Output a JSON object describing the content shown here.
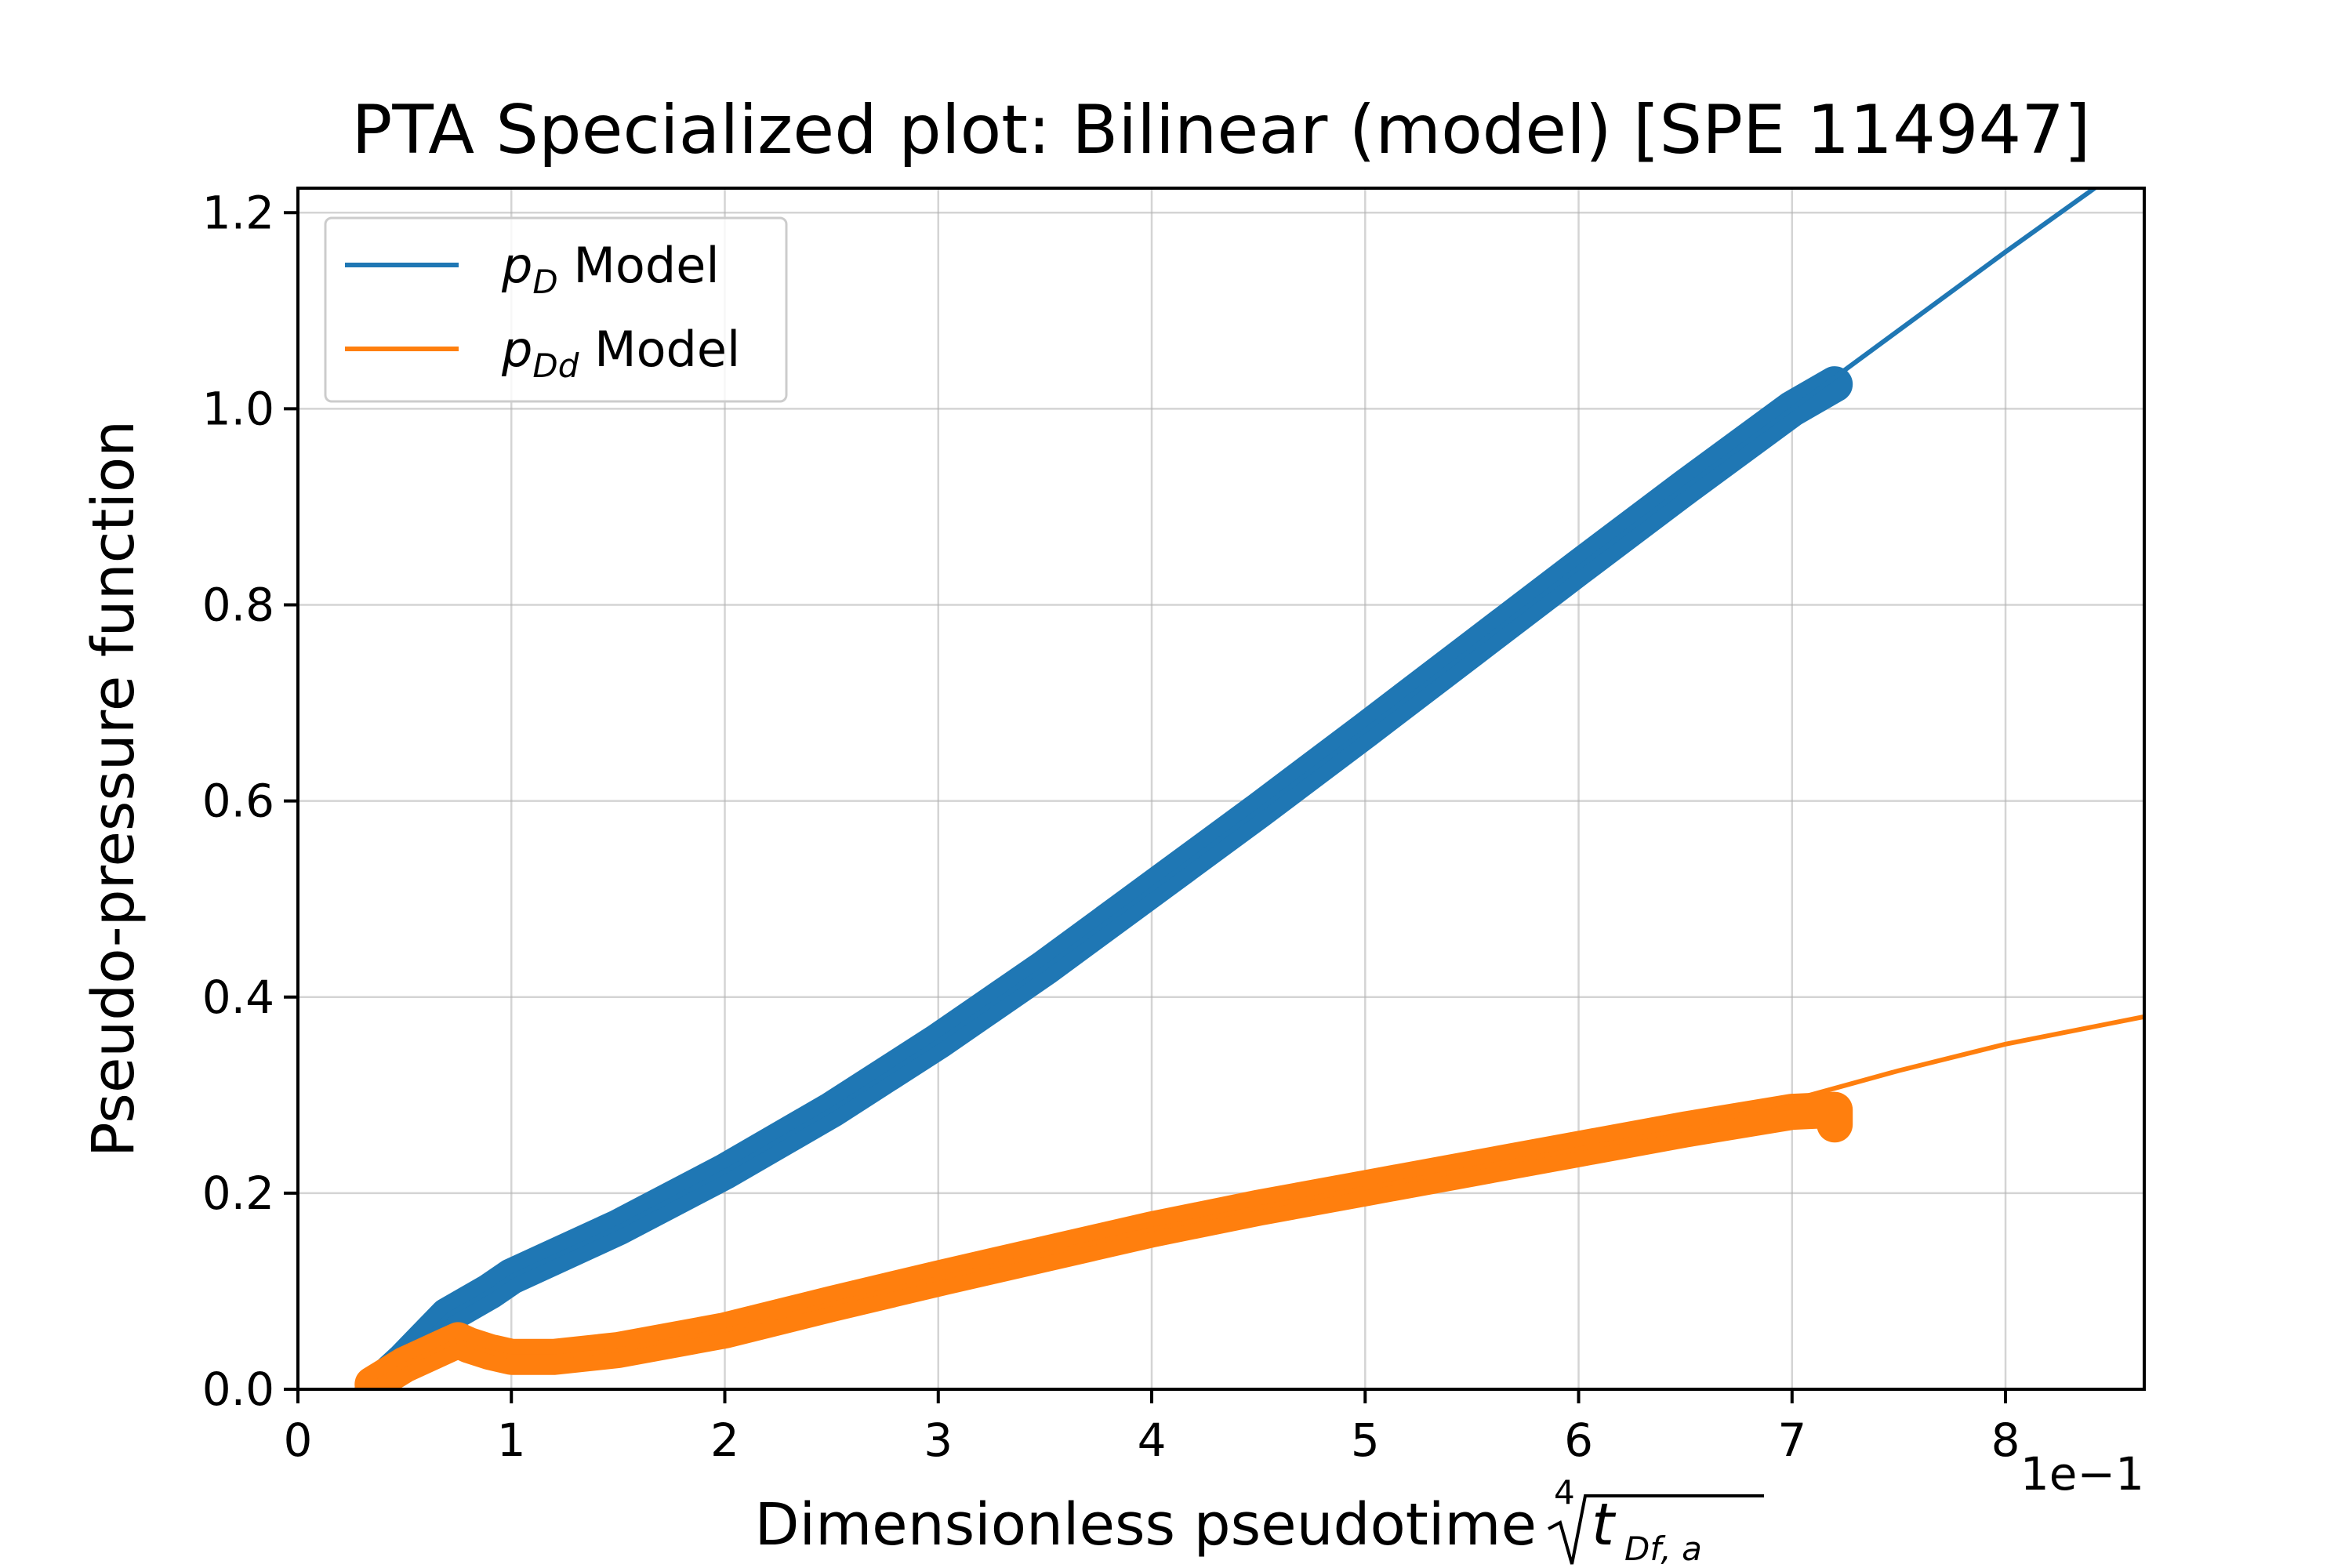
{
  "chart_data": {
    "type": "line",
    "title": "PTA Specialized plot: Bilinear (model) [SPE 114947]",
    "xlabel": "Dimensionless pseudotime",
    "xlabel_math": {
      "root_index": "4",
      "base": "t",
      "subscript": "Df, a"
    },
    "ylabel": "Pseudo-pressure function",
    "x_offset_label": "1e−1",
    "xlim": [
      0,
      8.65
    ],
    "ylim": [
      0,
      1.225
    ],
    "xticks": [
      0,
      1,
      2,
      3,
      4,
      5,
      6,
      7,
      8
    ],
    "yticks": [
      0.0,
      0.2,
      0.4,
      0.6,
      0.8,
      1.0,
      1.2
    ],
    "xtick_labels": [
      "0",
      "1",
      "2",
      "3",
      "4",
      "5",
      "6",
      "7",
      "8"
    ],
    "ytick_labels": [
      "0.0",
      "0.2",
      "0.4",
      "0.6",
      "0.8",
      "1.0",
      "1.2"
    ],
    "grid": true,
    "legend_position": "top-left",
    "series": [
      {
        "name": "p_D Model",
        "legend_symbol": "p",
        "legend_sub": "D",
        "legend_rest": " Model",
        "color": "#1f77b4",
        "line_x": [
          0.35,
          0.5,
          0.7,
          0.9,
          1.0,
          1.2,
          1.5,
          2.0,
          2.5,
          3.0,
          3.5,
          4.0,
          4.5,
          5.0,
          5.5,
          6.0,
          6.5,
          7.0,
          7.25,
          7.5,
          8.0,
          8.45
        ],
        "line_y": [
          0.0,
          0.03,
          0.075,
          0.1,
          0.115,
          0.135,
          0.165,
          0.222,
          0.285,
          0.355,
          0.43,
          0.51,
          0.59,
          0.672,
          0.755,
          0.838,
          0.92,
          1.0,
          1.04,
          1.08,
          1.16,
          1.23
        ],
        "marker_x": [
          0.35,
          0.5,
          0.7,
          0.9,
          1.0,
          1.2,
          1.5,
          2.0,
          2.5,
          3.0,
          3.5,
          4.0,
          4.5,
          5.0,
          5.5,
          6.0,
          6.5,
          7.0,
          7.2
        ],
        "marker_y": [
          0.0,
          0.03,
          0.075,
          0.1,
          0.115,
          0.135,
          0.165,
          0.222,
          0.285,
          0.355,
          0.43,
          0.51,
          0.59,
          0.672,
          0.755,
          0.838,
          0.92,
          1.0,
          1.025
        ]
      },
      {
        "name": "p_Dd Model",
        "legend_symbol": "p",
        "legend_sub": "Dd",
        "legend_rest": " Model",
        "color": "#ff7f0e",
        "line_x": [
          0.35,
          0.5,
          0.6,
          0.7,
          0.75,
          0.8,
          0.9,
          1.0,
          1.2,
          1.5,
          2.0,
          2.5,
          3.0,
          3.5,
          4.0,
          4.5,
          5.0,
          5.5,
          6.0,
          6.5,
          7.0,
          7.5,
          8.0,
          8.65
        ],
        "line_y": [
          0.005,
          0.025,
          0.035,
          0.045,
          0.05,
          0.045,
          0.038,
          0.033,
          0.033,
          0.04,
          0.06,
          0.087,
          0.113,
          0.138,
          0.163,
          0.185,
          0.205,
          0.225,
          0.245,
          0.265,
          0.295,
          0.325,
          0.352,
          0.38
        ],
        "marker_x": [
          0.35,
          0.5,
          0.6,
          0.7,
          0.75,
          0.8,
          0.9,
          1.0,
          1.2,
          1.5,
          2.0,
          2.5,
          3.0,
          3.5,
          4.0,
          4.5,
          5.0,
          5.5,
          6.0,
          6.5,
          7.0,
          7.2,
          7.2
        ],
        "marker_y": [
          0.005,
          0.025,
          0.035,
          0.045,
          0.05,
          0.045,
          0.038,
          0.033,
          0.033,
          0.04,
          0.06,
          0.087,
          0.113,
          0.138,
          0.163,
          0.185,
          0.205,
          0.225,
          0.245,
          0.265,
          0.283,
          0.285,
          0.27
        ]
      }
    ]
  }
}
